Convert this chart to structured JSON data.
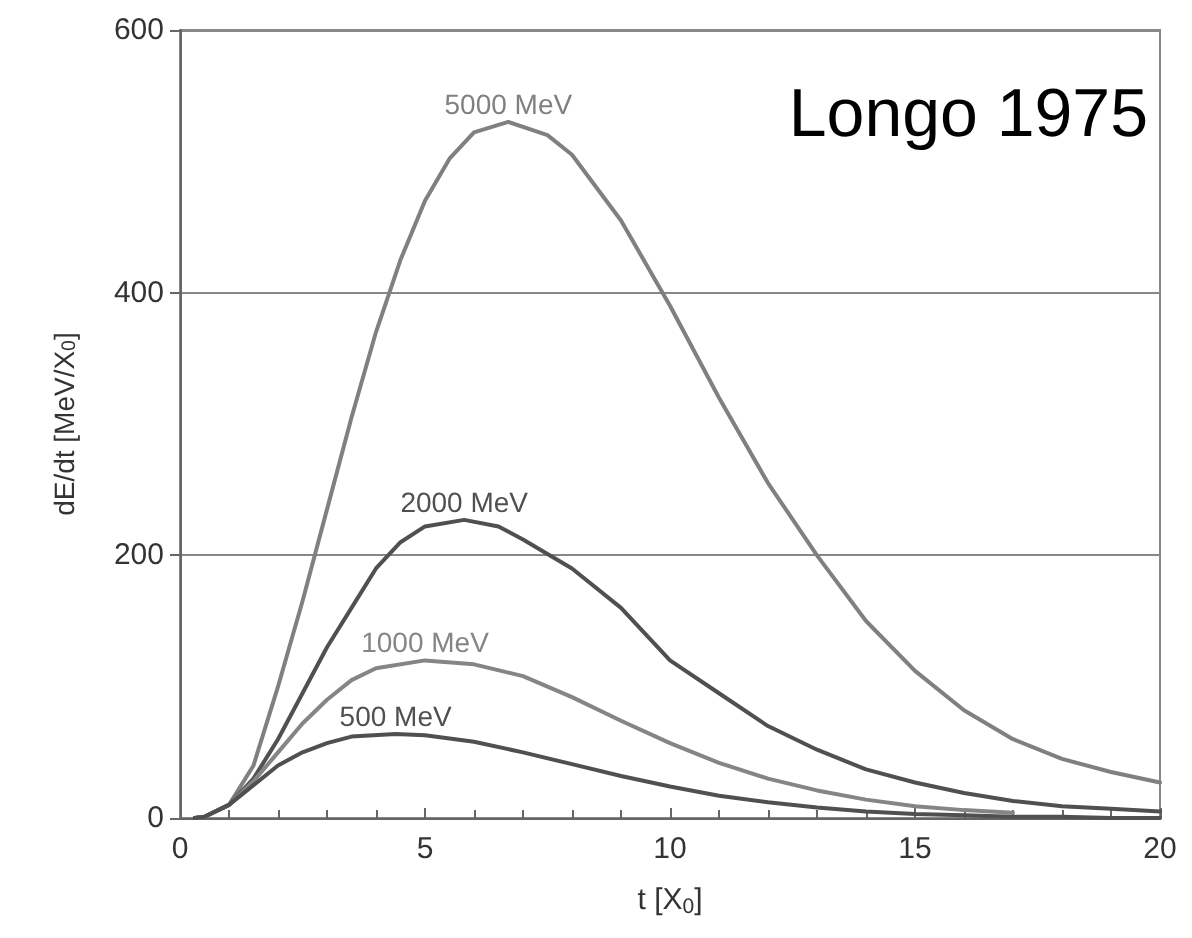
{
  "chart_data": {
    "type": "line",
    "xlabel": "t [X$_{0}$]",
    "ylabel": "dE/dt [MeV/X$_{0}$]",
    "xlim": [
      0,
      20
    ],
    "xticks": [
      0,
      5,
      10,
      15,
      20
    ],
    "ylim": [
      0,
      600
    ],
    "yticks": [
      0,
      200,
      400,
      600
    ],
    "grid": "y",
    "legend": false,
    "marker": "none",
    "line_style": "solid",
    "annotations": [
      "Longo 1975"
    ],
    "series": [
      {
        "name": "5000 MeV",
        "color": "#808080",
        "x": [
          0.3,
          0.5,
          1,
          1.5,
          2,
          2.5,
          3,
          3.5,
          4,
          4.5,
          5,
          5.5,
          6,
          6.7,
          7.5,
          8,
          9,
          10,
          11,
          12,
          13,
          14,
          15,
          16,
          17,
          18,
          19,
          20
        ],
        "values": [
          0,
          1,
          10,
          40,
          100,
          165,
          235,
          305,
          370,
          425,
          470,
          502,
          522,
          530,
          520,
          505,
          455,
          390,
          320,
          255,
          200,
          150,
          112,
          82,
          60,
          45,
          35,
          27
        ]
      },
      {
        "name": "2000 MeV",
        "color": "#505050",
        "x": [
          0.3,
          0.5,
          1,
          1.5,
          2,
          2.5,
          3,
          3.5,
          4,
          4.5,
          5,
          5.8,
          6.5,
          7,
          8,
          9,
          10,
          11,
          12,
          13,
          14,
          15,
          16,
          17,
          18,
          19,
          20
        ],
        "values": [
          0,
          1,
          10,
          30,
          60,
          95,
          130,
          160,
          190,
          210,
          222,
          227,
          222,
          212,
          190,
          160,
          120,
          95,
          70,
          52,
          37,
          27,
          19,
          13,
          9,
          7,
          5
        ]
      },
      {
        "name": "1000 MeV",
        "color": "#858585",
        "x": [
          0.3,
          0.5,
          1,
          1.5,
          2,
          2.5,
          3,
          3.5,
          4,
          5,
          6,
          7,
          8,
          9,
          10,
          11,
          12,
          13,
          14,
          15,
          16,
          17
        ],
        "values": [
          0,
          1,
          10,
          28,
          50,
          72,
          90,
          105,
          114,
          120,
          117,
          108,
          92,
          74,
          57,
          42,
          30,
          21,
          14,
          9,
          6,
          4
        ]
      },
      {
        "name": "500 MeV",
        "color": "#505050",
        "x": [
          0.3,
          0.5,
          1,
          1.5,
          2,
          2.5,
          3,
          3.5,
          4.4,
          5,
          6,
          7,
          8,
          9,
          10,
          11,
          12,
          13,
          14,
          15,
          16,
          17,
          18,
          19,
          20
        ],
        "values": [
          0,
          1,
          10,
          25,
          40,
          50,
          57,
          62,
          64,
          63,
          58,
          50,
          41,
          32,
          24,
          17,
          12,
          8,
          5,
          3,
          2,
          1,
          1,
          0,
          0
        ]
      }
    ]
  }
}
